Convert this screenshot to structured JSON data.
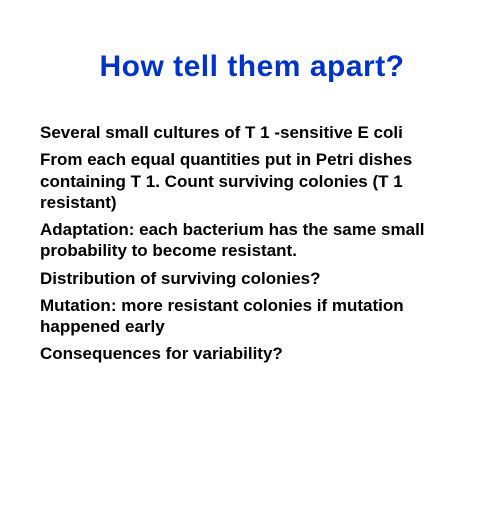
{
  "slide": {
    "title": "How tell them apart?",
    "title_color": "#0033cc",
    "title_fontsize": 30,
    "body_fontsize": 17,
    "body_color": "#000000",
    "background_color": "#ffffff",
    "paragraphs": [
      "Several small cultures of T 1 -sensitive E coli",
      "From each equal quantities put in Petri dishes containing T 1. Count surviving colonies (T 1 resistant)",
      "Adaptation: each bacterium has the same small probability to become resistant.",
      "Distribution of surviving colonies?",
      "Mutation:  more resistant colonies if mutation happened early",
      "Consequences for variability?"
    ]
  }
}
